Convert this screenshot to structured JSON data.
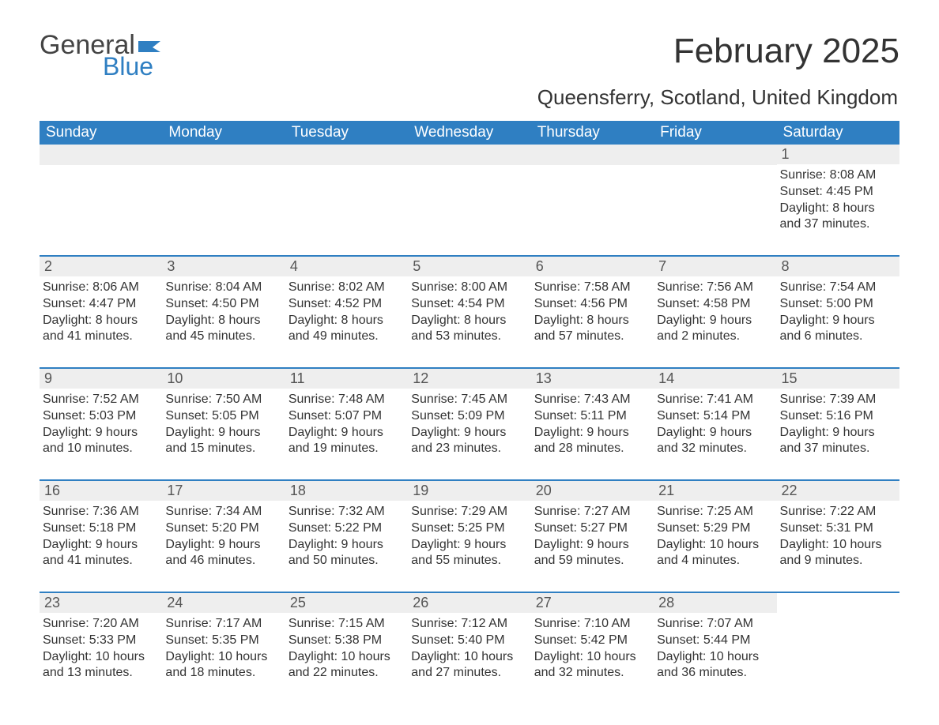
{
  "brand": {
    "general": "General",
    "blue": "Blue",
    "flag_color": "#2f7fc2"
  },
  "title": "February 2025",
  "subtitle": "Queensferry, Scotland, United Kingdom",
  "colors": {
    "header_bg": "#2f7fc2",
    "header_text": "#ffffff",
    "row_sep": "#2f7fc2",
    "daynum_bg": "#eeeeee",
    "text": "#333333"
  },
  "days_of_week": [
    "Sunday",
    "Monday",
    "Tuesday",
    "Wednesday",
    "Thursday",
    "Friday",
    "Saturday"
  ],
  "weeks": [
    [
      null,
      null,
      null,
      null,
      null,
      null,
      {
        "n": "1",
        "sunrise": "Sunrise: 8:08 AM",
        "sunset": "Sunset: 4:45 PM",
        "dl1": "Daylight: 8 hours",
        "dl2": "and 37 minutes."
      }
    ],
    [
      {
        "n": "2",
        "sunrise": "Sunrise: 8:06 AM",
        "sunset": "Sunset: 4:47 PM",
        "dl1": "Daylight: 8 hours",
        "dl2": "and 41 minutes."
      },
      {
        "n": "3",
        "sunrise": "Sunrise: 8:04 AM",
        "sunset": "Sunset: 4:50 PM",
        "dl1": "Daylight: 8 hours",
        "dl2": "and 45 minutes."
      },
      {
        "n": "4",
        "sunrise": "Sunrise: 8:02 AM",
        "sunset": "Sunset: 4:52 PM",
        "dl1": "Daylight: 8 hours",
        "dl2": "and 49 minutes."
      },
      {
        "n": "5",
        "sunrise": "Sunrise: 8:00 AM",
        "sunset": "Sunset: 4:54 PM",
        "dl1": "Daylight: 8 hours",
        "dl2": "and 53 minutes."
      },
      {
        "n": "6",
        "sunrise": "Sunrise: 7:58 AM",
        "sunset": "Sunset: 4:56 PM",
        "dl1": "Daylight: 8 hours",
        "dl2": "and 57 minutes."
      },
      {
        "n": "7",
        "sunrise": "Sunrise: 7:56 AM",
        "sunset": "Sunset: 4:58 PM",
        "dl1": "Daylight: 9 hours",
        "dl2": "and 2 minutes."
      },
      {
        "n": "8",
        "sunrise": "Sunrise: 7:54 AM",
        "sunset": "Sunset: 5:00 PM",
        "dl1": "Daylight: 9 hours",
        "dl2": "and 6 minutes."
      }
    ],
    [
      {
        "n": "9",
        "sunrise": "Sunrise: 7:52 AM",
        "sunset": "Sunset: 5:03 PM",
        "dl1": "Daylight: 9 hours",
        "dl2": "and 10 minutes."
      },
      {
        "n": "10",
        "sunrise": "Sunrise: 7:50 AM",
        "sunset": "Sunset: 5:05 PM",
        "dl1": "Daylight: 9 hours",
        "dl2": "and 15 minutes."
      },
      {
        "n": "11",
        "sunrise": "Sunrise: 7:48 AM",
        "sunset": "Sunset: 5:07 PM",
        "dl1": "Daylight: 9 hours",
        "dl2": "and 19 minutes."
      },
      {
        "n": "12",
        "sunrise": "Sunrise: 7:45 AM",
        "sunset": "Sunset: 5:09 PM",
        "dl1": "Daylight: 9 hours",
        "dl2": "and 23 minutes."
      },
      {
        "n": "13",
        "sunrise": "Sunrise: 7:43 AM",
        "sunset": "Sunset: 5:11 PM",
        "dl1": "Daylight: 9 hours",
        "dl2": "and 28 minutes."
      },
      {
        "n": "14",
        "sunrise": "Sunrise: 7:41 AM",
        "sunset": "Sunset: 5:14 PM",
        "dl1": "Daylight: 9 hours",
        "dl2": "and 32 minutes."
      },
      {
        "n": "15",
        "sunrise": "Sunrise: 7:39 AM",
        "sunset": "Sunset: 5:16 PM",
        "dl1": "Daylight: 9 hours",
        "dl2": "and 37 minutes."
      }
    ],
    [
      {
        "n": "16",
        "sunrise": "Sunrise: 7:36 AM",
        "sunset": "Sunset: 5:18 PM",
        "dl1": "Daylight: 9 hours",
        "dl2": "and 41 minutes."
      },
      {
        "n": "17",
        "sunrise": "Sunrise: 7:34 AM",
        "sunset": "Sunset: 5:20 PM",
        "dl1": "Daylight: 9 hours",
        "dl2": "and 46 minutes."
      },
      {
        "n": "18",
        "sunrise": "Sunrise: 7:32 AM",
        "sunset": "Sunset: 5:22 PM",
        "dl1": "Daylight: 9 hours",
        "dl2": "and 50 minutes."
      },
      {
        "n": "19",
        "sunrise": "Sunrise: 7:29 AM",
        "sunset": "Sunset: 5:25 PM",
        "dl1": "Daylight: 9 hours",
        "dl2": "and 55 minutes."
      },
      {
        "n": "20",
        "sunrise": "Sunrise: 7:27 AM",
        "sunset": "Sunset: 5:27 PM",
        "dl1": "Daylight: 9 hours",
        "dl2": "and 59 minutes."
      },
      {
        "n": "21",
        "sunrise": "Sunrise: 7:25 AM",
        "sunset": "Sunset: 5:29 PM",
        "dl1": "Daylight: 10 hours",
        "dl2": "and 4 minutes."
      },
      {
        "n": "22",
        "sunrise": "Sunrise: 7:22 AM",
        "sunset": "Sunset: 5:31 PM",
        "dl1": "Daylight: 10 hours",
        "dl2": "and 9 minutes."
      }
    ],
    [
      {
        "n": "23",
        "sunrise": "Sunrise: 7:20 AM",
        "sunset": "Sunset: 5:33 PM",
        "dl1": "Daylight: 10 hours",
        "dl2": "and 13 minutes."
      },
      {
        "n": "24",
        "sunrise": "Sunrise: 7:17 AM",
        "sunset": "Sunset: 5:35 PM",
        "dl1": "Daylight: 10 hours",
        "dl2": "and 18 minutes."
      },
      {
        "n": "25",
        "sunrise": "Sunrise: 7:15 AM",
        "sunset": "Sunset: 5:38 PM",
        "dl1": "Daylight: 10 hours",
        "dl2": "and 22 minutes."
      },
      {
        "n": "26",
        "sunrise": "Sunrise: 7:12 AM",
        "sunset": "Sunset: 5:40 PM",
        "dl1": "Daylight: 10 hours",
        "dl2": "and 27 minutes."
      },
      {
        "n": "27",
        "sunrise": "Sunrise: 7:10 AM",
        "sunset": "Sunset: 5:42 PM",
        "dl1": "Daylight: 10 hours",
        "dl2": "and 32 minutes."
      },
      {
        "n": "28",
        "sunrise": "Sunrise: 7:07 AM",
        "sunset": "Sunset: 5:44 PM",
        "dl1": "Daylight: 10 hours",
        "dl2": "and 36 minutes."
      },
      null
    ]
  ]
}
